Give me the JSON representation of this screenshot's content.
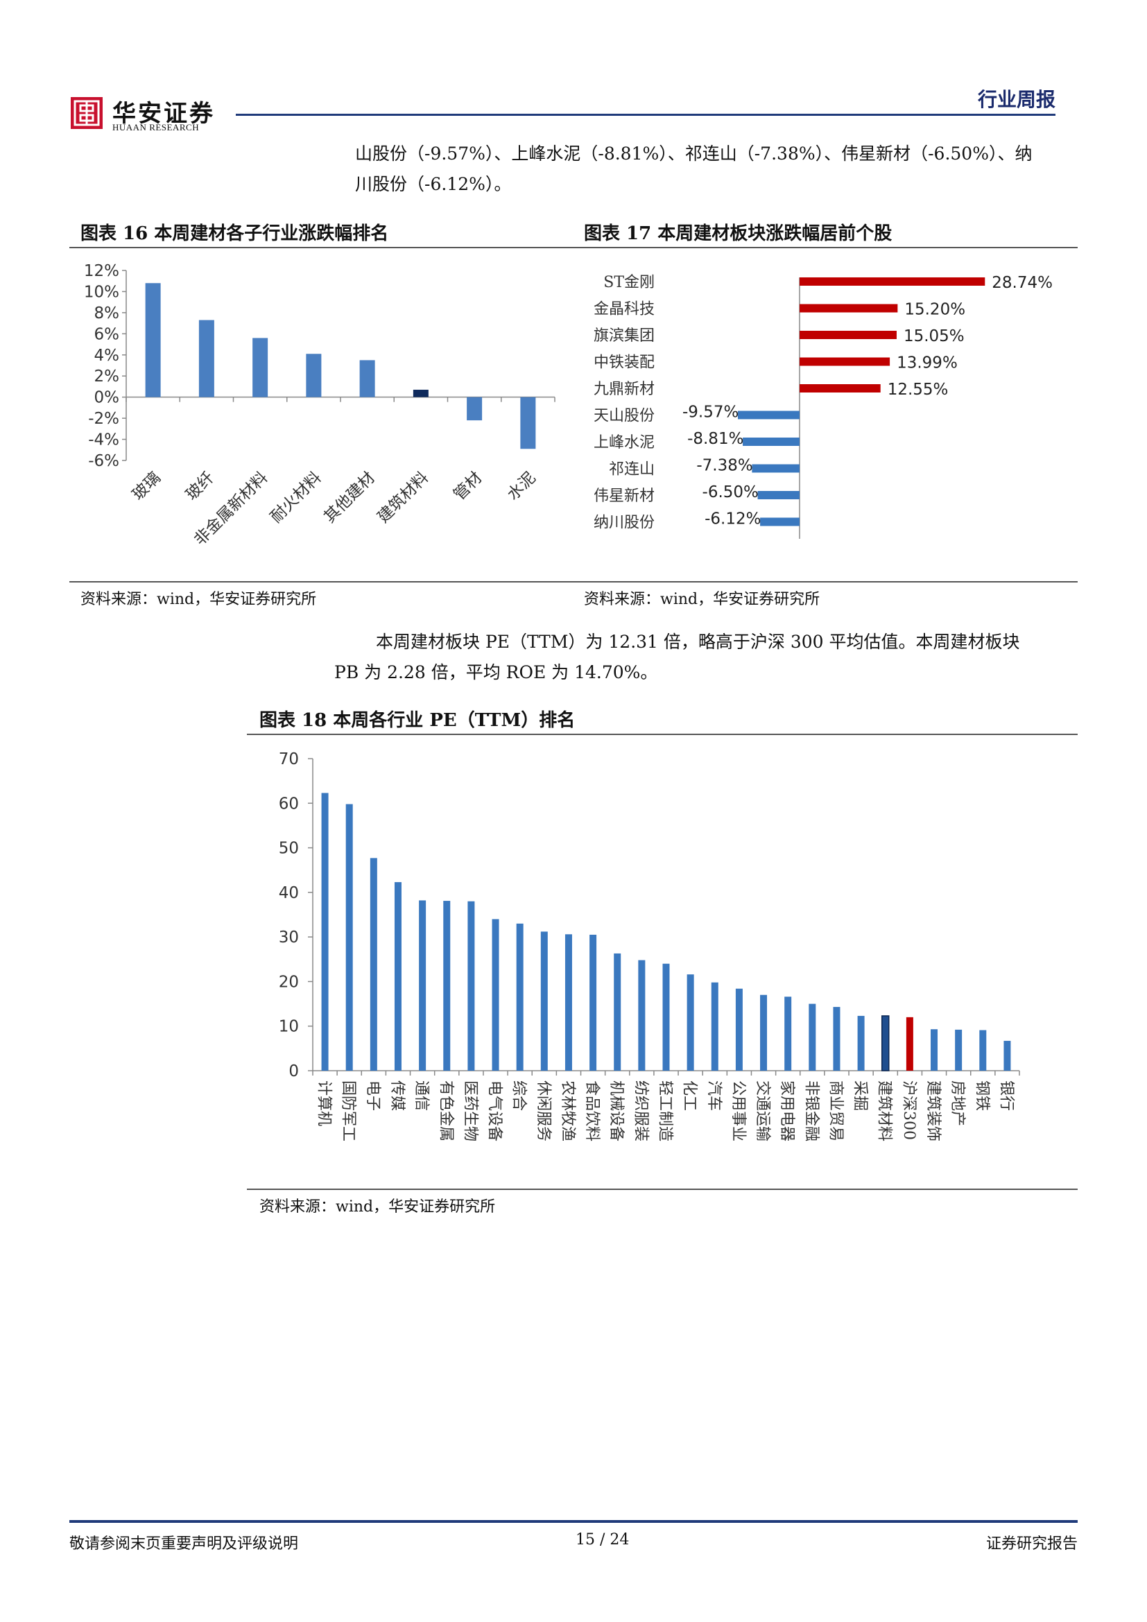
{
  "header": {
    "logo_text": "华安证券",
    "logo_sub": "HUAAN RESEARCH",
    "report_type": "行业周报"
  },
  "intro": {
    "line1": "山股份（-9.57%）、上峰水泥（-8.81%）、祁连山（-7.38%）、伟星新材（-6.50%）、纳",
    "line2": "川股份（-6.12%）。"
  },
  "fig16": {
    "title": "图表 16  本周建材各子行业涨跌幅排名",
    "source": "资料来源：wind，华安证券研究所",
    "chart_data": {
      "type": "bar",
      "categories": [
        "玻璃",
        "玻纤",
        "非金属新材料",
        "耐火材料",
        "其他建材",
        "建筑材料",
        "管材",
        "水泥"
      ],
      "values": [
        10.8,
        7.3,
        5.6,
        4.1,
        3.5,
        0.7,
        -2.2,
        -4.9
      ],
      "unit": "%",
      "highlight_index": 5,
      "ylim": [
        -6,
        12
      ],
      "yticks": [
        "12%",
        "10%",
        "8%",
        "6%",
        "4%",
        "2%",
        "0%",
        "-2%",
        "-4%",
        "-6%"
      ],
      "colors": {
        "bar": "#4a7fc1",
        "highlight": "#0f2a5c"
      }
    }
  },
  "fig17": {
    "title": "图表 17  本周建材板块涨跌幅居前个股",
    "source": "资料来源：wind，华安证券研究所",
    "chart_data": {
      "type": "bar",
      "orientation": "horizontal",
      "categories": [
        "ST金刚",
        "金晶科技",
        "旗滨集团",
        "中铁装配",
        "九鼎新材",
        "天山股份",
        "上峰水泥",
        "祁连山",
        "伟星新材",
        "纳川股份"
      ],
      "values": [
        28.74,
        15.2,
        15.05,
        13.99,
        12.55,
        -9.57,
        -8.81,
        -7.38,
        -6.5,
        -6.12
      ],
      "labels": [
        "28.74%",
        "15.20%",
        "15.05%",
        "13.99%",
        "12.55%",
        "-9.57%",
        "-8.81%",
        "-7.38%",
        "-6.50%",
        "-6.12%"
      ],
      "colors": {
        "positive": "#c00000",
        "negative": "#3a78bf"
      }
    }
  },
  "body_text": {
    "line1": "本周建材板块 PE（TTM）为 12.31 倍，略高于沪深 300 平均估值。本周建材板块",
    "line2": "PB 为 2.28 倍，平均 ROE 为 14.70%。"
  },
  "fig18": {
    "title": "图表 18  本周各行业 PE（TTM）排名",
    "source": "资料来源：wind，华安证券研究所",
    "chart_data": {
      "type": "bar",
      "categories": [
        "计算机",
        "国防军工",
        "电子",
        "传媒",
        "通信",
        "有色金属",
        "医药生物",
        "电气设备",
        "综合",
        "休闲服务",
        "农林牧渔",
        "食品饮料",
        "机械设备",
        "纺织服装",
        "轻工制造",
        "化工",
        "汽车",
        "公用事业",
        "交通运输",
        "家用电器",
        "非银金融",
        "商业贸易",
        "采掘",
        "建筑材料",
        "沪深300",
        "建筑装饰",
        "房地产",
        "钢铁",
        "银行"
      ],
      "values": [
        62.3,
        59.8,
        47.7,
        42.3,
        38.2,
        38.1,
        38.0,
        34.0,
        33.0,
        31.2,
        30.6,
        30.5,
        26.3,
        24.8,
        24.0,
        21.6,
        19.8,
        18.4,
        17.0,
        16.6,
        15.0,
        14.3,
        12.3,
        12.3,
        12.0,
        9.3,
        9.2,
        9.1,
        6.7
      ],
      "ylim": [
        0,
        70
      ],
      "yticks": [
        "0",
        "10",
        "20",
        "30",
        "40",
        "50",
        "60",
        "70"
      ],
      "colors": {
        "bar": "#3a78bf",
        "building": "#1f4e8f",
        "hs300": "#c00000"
      }
    }
  },
  "footer": {
    "disclaimer": "敬请参阅末页重要声明及评级说明",
    "page": "15 / 24",
    "doc_type": "证券研究报告"
  }
}
